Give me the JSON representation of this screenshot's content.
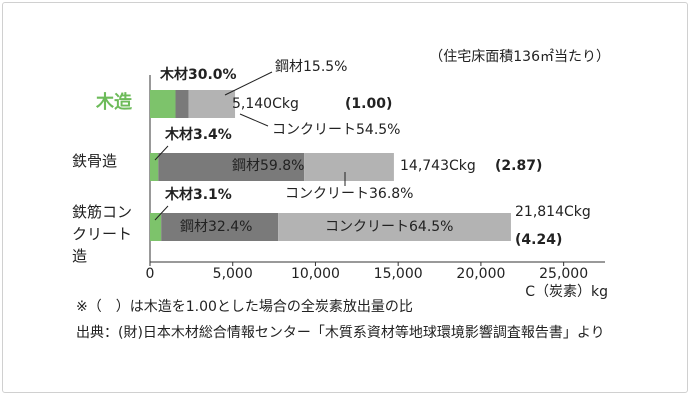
{
  "chart_data": {
    "type": "stacked-barh",
    "note": "（住宅床面積136㎡当たり）",
    "x_label": "C（炭素）kg",
    "categories": [
      "木造",
      "鉄骨造",
      "鉄筋コンクリート造"
    ],
    "series": [
      {
        "name": "木材",
        "color": "#7dc36b",
        "values": [
          1542,
          501,
          676
        ],
        "value_labels": [
          "木材30.0%",
          "木材3.4%",
          "木材3.1%"
        ]
      },
      {
        "name": "鋼材",
        "color": "#7a7a7a",
        "values": [
          797,
          8816,
          7068
        ],
        "value_labels": [
          "鋼材15.5%",
          "鋼材59.8%",
          "鋼材32.4%"
        ]
      },
      {
        "name": "コンクリート",
        "color": "#b3b3b3",
        "values": [
          2801,
          5425,
          14070
        ],
        "value_labels": [
          "コンクリート54.5%",
          "コンクリート36.8%",
          "コンクリート64.5%"
        ]
      }
    ],
    "totals": [
      5140,
      14743,
      21814
    ],
    "total_labels": [
      "5,140Ckg",
      "14,743Ckg",
      "21,814Ckg"
    ],
    "ratio_labels": [
      "(1.00)",
      "(2.87)",
      "(4.24)"
    ],
    "xlim": [
      0,
      27500
    ],
    "xticks": [
      0,
      {
        "value": 5000,
        "label": "5,000"
      },
      {
        "value": 10000,
        "label": "10,000"
      },
      {
        "value": 15000,
        "label": "15,000"
      },
      {
        "value": 20000,
        "label": "20,000"
      },
      {
        "value": 25000,
        "label": "25,000"
      }
    ],
    "footnotes": [
      "※（　）は木造を1.00とした場合の全炭素放出量の比",
      "出典：(財)日本木材総合情報センター「木質系資材等地球環境影響調査報告書」より"
    ]
  }
}
